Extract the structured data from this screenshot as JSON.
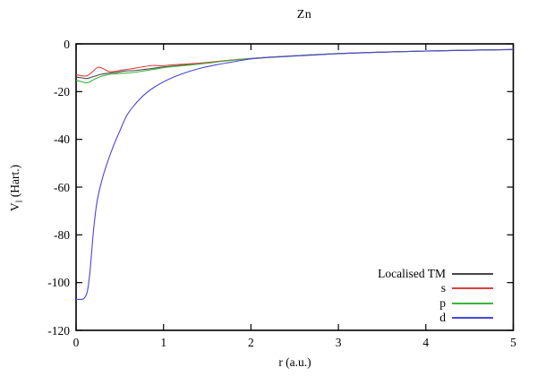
{
  "chart_data": {
    "type": "line",
    "title": "Zn",
    "xlabel": "r (a.u.)",
    "ylabel": "V_l (Hart.)",
    "ylabel_parts": {
      "main": "V",
      "sub": "l",
      "rest": " (Hart.)"
    },
    "xlim": [
      0,
      5
    ],
    "ylim": [
      -120,
      0
    ],
    "xticks": [
      0,
      1,
      2,
      3,
      4,
      5
    ],
    "yticks": [
      0,
      -20,
      -40,
      -60,
      -80,
      -100,
      -120
    ],
    "grid": false,
    "legend_position": "inside-bottom-right",
    "axis_color": "#000000",
    "background_color": "#ffffff",
    "series": [
      {
        "name": "Localised TM",
        "color": "#474747",
        "points": [
          [
            0,
            -13.9
          ],
          [
            0.06,
            -14.2
          ],
          [
            0.12,
            -14.5
          ],
          [
            0.2,
            -13.7
          ],
          [
            0.28,
            -12.8
          ],
          [
            0.36,
            -12.3
          ],
          [
            0.45,
            -12.0
          ],
          [
            0.55,
            -11.4
          ],
          [
            0.66,
            -11.2
          ],
          [
            0.8,
            -10.6
          ],
          [
            0.95,
            -9.9
          ],
          [
            1.1,
            -9.35
          ],
          [
            1.3,
            -8.6
          ],
          [
            1.5,
            -7.85
          ],
          [
            1.7,
            -7.1
          ],
          [
            1.9,
            -6.45
          ],
          [
            2.2,
            -5.6
          ],
          [
            2.6,
            -4.8
          ],
          [
            3.0,
            -4.05
          ],
          [
            3.5,
            -3.45
          ],
          [
            4.0,
            -3.0
          ],
          [
            4.5,
            -2.65
          ],
          [
            5.0,
            -2.35
          ]
        ]
      },
      {
        "name": "s",
        "color": "#dd4040",
        "points": [
          [
            0,
            -12.9
          ],
          [
            0.07,
            -13.4
          ],
          [
            0.13,
            -13.3
          ],
          [
            0.19,
            -11.6
          ],
          [
            0.25,
            -9.8
          ],
          [
            0.31,
            -10.4
          ],
          [
            0.38,
            -11.6
          ],
          [
            0.45,
            -11.5
          ],
          [
            0.52,
            -11.0
          ],
          [
            0.62,
            -10.5
          ],
          [
            0.75,
            -9.7
          ],
          [
            0.88,
            -9.05
          ],
          [
            0.97,
            -9.2
          ],
          [
            1.1,
            -8.8
          ],
          [
            1.3,
            -8.35
          ],
          [
            1.5,
            -7.8
          ],
          [
            1.7,
            -7.05
          ],
          [
            1.9,
            -6.4
          ],
          [
            2.2,
            -5.58
          ],
          [
            2.6,
            -4.78
          ],
          [
            3.0,
            -4.04
          ],
          [
            3.5,
            -3.44
          ],
          [
            4.0,
            -3.0
          ],
          [
            4.5,
            -2.65
          ],
          [
            5.0,
            -2.35
          ]
        ]
      },
      {
        "name": "p",
        "color": "#3cb43c",
        "points": [
          [
            0,
            -15.2
          ],
          [
            0.07,
            -15.9
          ],
          [
            0.13,
            -16.3
          ],
          [
            0.2,
            -15.0
          ],
          [
            0.28,
            -13.7
          ],
          [
            0.36,
            -12.9
          ],
          [
            0.45,
            -12.55
          ],
          [
            0.55,
            -12.3
          ],
          [
            0.66,
            -12.0
          ],
          [
            0.78,
            -11.3
          ],
          [
            0.9,
            -10.6
          ],
          [
            1.05,
            -9.75
          ],
          [
            1.2,
            -9.2
          ],
          [
            1.35,
            -8.7
          ],
          [
            1.5,
            -8.1
          ],
          [
            1.7,
            -7.2
          ],
          [
            1.9,
            -6.5
          ],
          [
            2.2,
            -5.65
          ],
          [
            2.6,
            -4.82
          ],
          [
            3.0,
            -4.07
          ],
          [
            3.5,
            -3.47
          ],
          [
            4.0,
            -3.0
          ],
          [
            4.5,
            -2.66
          ],
          [
            5.0,
            -2.36
          ]
        ]
      },
      {
        "name": "d",
        "color": "#4646d8",
        "points": [
          [
            0,
            -107
          ],
          [
            0.07,
            -107
          ],
          [
            0.1,
            -106.2
          ],
          [
            0.13,
            -103.5
          ],
          [
            0.16,
            -95
          ],
          [
            0.2,
            -78
          ],
          [
            0.24,
            -66
          ],
          [
            0.3,
            -56.5
          ],
          [
            0.36,
            -49.5
          ],
          [
            0.43,
            -42.5
          ],
          [
            0.5,
            -36.5
          ],
          [
            0.58,
            -30
          ],
          [
            0.67,
            -25.5
          ],
          [
            0.78,
            -21.3
          ],
          [
            0.9,
            -18
          ],
          [
            1.05,
            -15
          ],
          [
            1.2,
            -12.7
          ],
          [
            1.4,
            -10.4
          ],
          [
            1.6,
            -8.8
          ],
          [
            1.8,
            -7.5
          ],
          [
            2.0,
            -6.3
          ],
          [
            2.3,
            -5.5
          ],
          [
            2.7,
            -4.7
          ],
          [
            3.0,
            -4.1
          ],
          [
            3.5,
            -3.5
          ],
          [
            4.0,
            -3.02
          ],
          [
            4.5,
            -2.68
          ],
          [
            5.0,
            -2.4
          ]
        ]
      }
    ]
  }
}
